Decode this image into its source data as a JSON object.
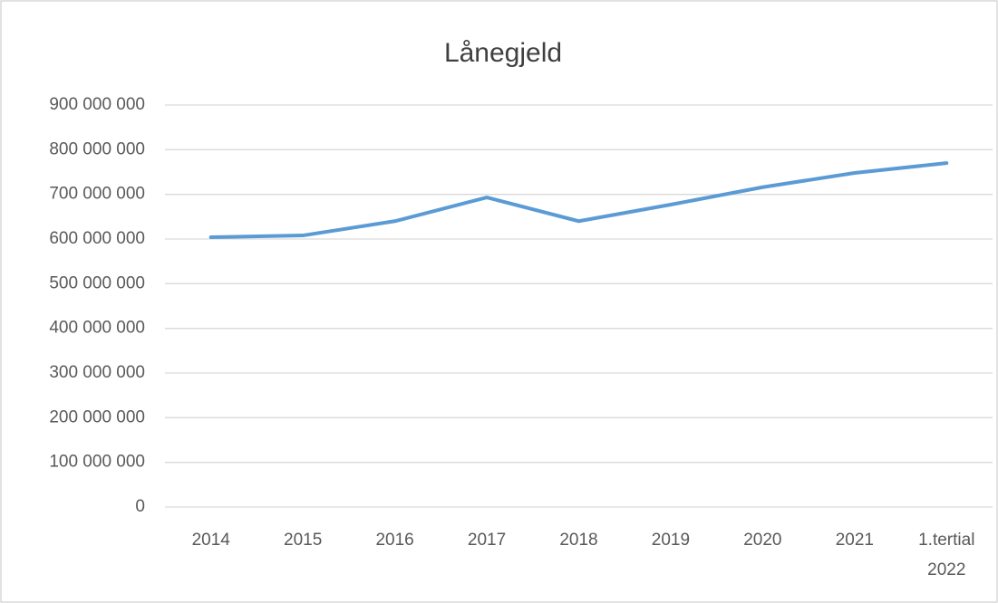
{
  "chart_data": {
    "type": "line",
    "title": "Lånegjeld",
    "categories": [
      "2014",
      "2015",
      "2016",
      "2017",
      "2018",
      "2019",
      "2020",
      "2021",
      "1.tertial 2022"
    ],
    "series": [
      {
        "name": "Lånegjeld",
        "color": "#5b9bd5",
        "values": [
          604000000,
          608000000,
          640000000,
          693000000,
          640000000,
          677000000,
          716000000,
          748000000,
          770000000
        ]
      }
    ],
    "ylim": [
      0,
      900000000
    ],
    "yticks": [
      {
        "value": 0,
        "label": "0"
      },
      {
        "value": 100000000,
        "label": "100 000 000"
      },
      {
        "value": 200000000,
        "label": "200 000 000"
      },
      {
        "value": 300000000,
        "label": "300 000 000"
      },
      {
        "value": 400000000,
        "label": "400 000 000"
      },
      {
        "value": 500000000,
        "label": "500 000 000"
      },
      {
        "value": 600000000,
        "label": "600 000 000"
      },
      {
        "value": 700000000,
        "label": "700 000 000"
      },
      {
        "value": 800000000,
        "label": "800 000 000"
      },
      {
        "value": 900000000,
        "label": "900 000 000"
      }
    ],
    "grid": true
  }
}
